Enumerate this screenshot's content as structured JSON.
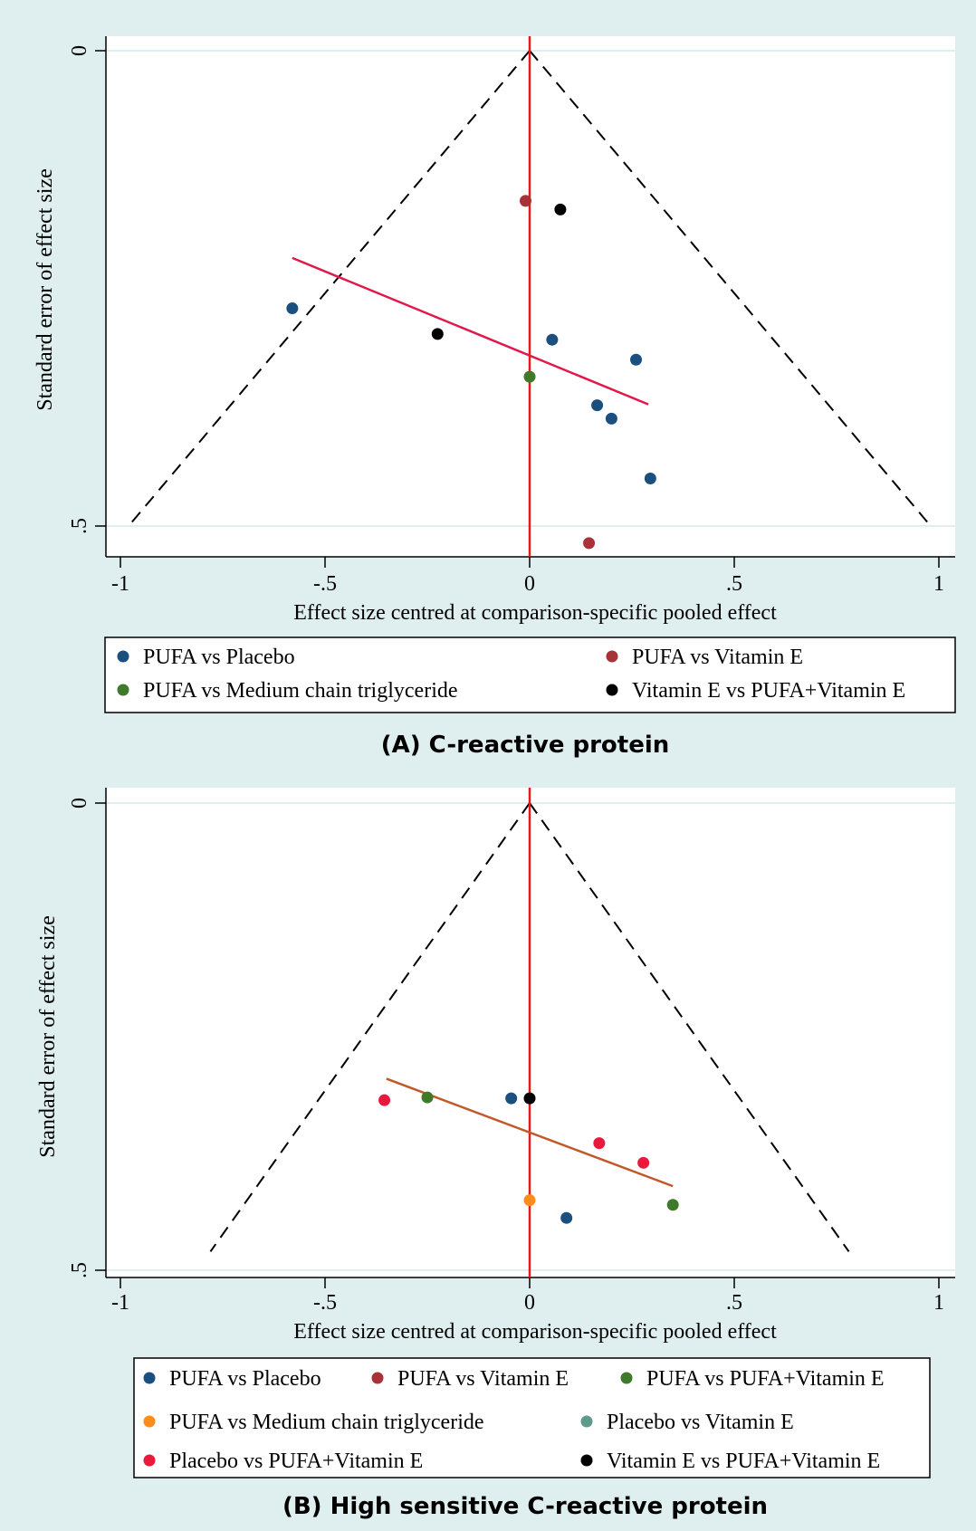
{
  "chart_data": [
    {
      "type": "scatter",
      "panel_title": "(A) C-reactive protein",
      "xlabel": "Effect size centred at comparison-specific pooled effect",
      "ylabel": "Standard error of effect size",
      "xlim": [
        -1,
        1
      ],
      "ylim": [
        0,
        0.5
      ],
      "y_reversed": true,
      "xticks": [
        -1,
        -0.5,
        0,
        0.5,
        1
      ],
      "xtick_labels": [
        "-1",
        "-.5",
        "0",
        ".5",
        "1"
      ],
      "yticks": [
        0,
        0.5
      ],
      "ytick_labels": [
        "0",
        ".5"
      ],
      "funnel": {
        "apex": [
          0,
          0
        ],
        "base_y": 0.5,
        "half_width": 0.98
      },
      "reference_line": {
        "x": 0,
        "color": "#e8191b"
      },
      "regression_line": {
        "from": [
          -0.58,
          0.218
        ],
        "to": [
          0.29,
          0.372
        ],
        "color": "#e0194a"
      },
      "legend_layout": "two-column",
      "series": [
        {
          "name": "PUFA vs Placebo",
          "color": "#1b4f7f",
          "points": [
            [
              -0.58,
              0.271
            ],
            [
              0.055,
              0.304
            ],
            [
              0.26,
              0.325
            ],
            [
              0.165,
              0.373
            ],
            [
              0.2,
              0.387
            ],
            [
              0.295,
              0.45
            ]
          ]
        },
        {
          "name": "PUFA vs Vitamin E",
          "color": "#a83238",
          "points": [
            [
              -0.01,
              0.158
            ],
            [
              0.145,
              0.518
            ]
          ]
        },
        {
          "name": "PUFA vs Medium chain triglyceride",
          "color": "#3f7a2a",
          "points": [
            [
              0.0,
              0.343
            ]
          ]
        },
        {
          "name": "Vitamin E vs PUFA+Vitamin E",
          "color": "#000000",
          "points": [
            [
              0.075,
              0.167
            ],
            [
              -0.225,
              0.298
            ]
          ]
        }
      ]
    },
    {
      "type": "scatter",
      "panel_title": "(B) High sensitive C-reactive protein",
      "xlabel": "Effect size centred at comparison-specific pooled effect",
      "ylabel": "Standard error of effect size",
      "xlim": [
        -1,
        1
      ],
      "ylim": [
        0,
        0.5
      ],
      "y_reversed": true,
      "xticks": [
        -1,
        -0.5,
        0,
        0.5,
        1
      ],
      "xtick_labels": [
        "-1",
        "-.5",
        "0",
        ".5",
        "1"
      ],
      "yticks": [
        0,
        0.5
      ],
      "ytick_labels": [
        "0",
        ".5"
      ],
      "funnel": {
        "apex": [
          0,
          0
        ],
        "base_y": 0.48,
        "half_width": 0.78
      },
      "reference_line": {
        "x": 0,
        "color": "#e8191b"
      },
      "regression_line": {
        "from": [
          -0.35,
          0.295
        ],
        "to": [
          0.35,
          0.41
        ],
        "color": "#c0582a"
      },
      "legend_layout": "three-column",
      "series": [
        {
          "name": "PUFA vs Placebo",
          "color": "#1b4f7f",
          "points": [
            [
              -0.045,
              0.316
            ],
            [
              0.09,
              0.444
            ]
          ]
        },
        {
          "name": "PUFA vs Vitamin E",
          "color": "#a83238",
          "points": []
        },
        {
          "name": "PUFA vs PUFA+Vitamin E",
          "color": "#3f7a2a",
          "points": [
            [
              -0.25,
              0.315
            ],
            [
              0.35,
              0.43
            ]
          ]
        },
        {
          "name": "PUFA vs Medium chain triglyceride",
          "color": "#ff8c1a",
          "points": [
            [
              0.0,
              0.425
            ]
          ]
        },
        {
          "name": "Placebo vs Vitamin E",
          "color": "#5f9a8c",
          "points": []
        },
        {
          "name": "Placebo vs PUFA+Vitamin E",
          "color": "#e8193c",
          "points": [
            [
              -0.355,
              0.318
            ],
            [
              0.17,
              0.364
            ],
            [
              0.278,
              0.385
            ]
          ]
        },
        {
          "name": "Vitamin E vs PUFA+Vitamin E",
          "color": "#000000",
          "points": [
            [
              0.0,
              0.316
            ]
          ]
        }
      ]
    }
  ]
}
